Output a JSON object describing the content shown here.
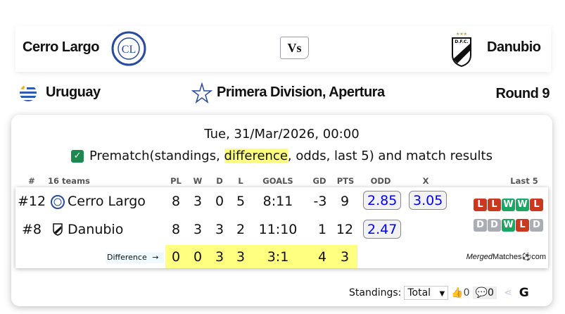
{
  "match": {
    "home": "Cerro Largo",
    "away": "Danubio",
    "vs": "Vs",
    "country": "Uruguay",
    "league": "Primera Division, Apertura",
    "round": "Round 9"
  },
  "datetime": "Tue, 31/Mar/2026, 00:00",
  "prematch": {
    "checked": true,
    "pre": "Prematch(standings, ",
    "highlight": "difference",
    "post": ", odds, last 5) and match results"
  },
  "table": {
    "headers": {
      "rank": "#",
      "teams": "16 teams",
      "pl": "PL",
      "w": "W",
      "d": "D",
      "l": "L",
      "goals": "GOALS",
      "gd": "GD",
      "pts": "PTS",
      "odd": "ODD",
      "x": "X",
      "last5": "Last 5"
    },
    "rows": [
      {
        "rank": "#12",
        "team": "Cerro Largo",
        "pl": "8",
        "w": "3",
        "d": "0",
        "l": "5",
        "goals": "8:11",
        "gd": "-3",
        "pts": "9",
        "odd": "2.85",
        "x": "3.05",
        "last5": [
          "L",
          "L",
          "W",
          "W",
          "L"
        ]
      },
      {
        "rank": "#8",
        "team": "Danubio",
        "pl": "8",
        "w": "3",
        "d": "3",
        "l": "2",
        "goals": "11:10",
        "gd": "1",
        "pts": "12",
        "odd": "2.47",
        "last5": [
          "D",
          "D",
          "W",
          "L",
          "D"
        ]
      }
    ],
    "difference": {
      "label": "Difference",
      "arrow": "→",
      "pl": "0",
      "w": "0",
      "d": "3",
      "l": "3",
      "goals": "3:1",
      "gd": "4",
      "pts": "3"
    }
  },
  "brand": {
    "italic": "Merged",
    "rest": "Matches",
    "tld": "com"
  },
  "footer": {
    "standings_label": "Standings:",
    "standings_value": "Total",
    "likes": "0",
    "comments": "0",
    "g": "G"
  },
  "colors": {
    "win": "#1aa663",
    "loss": "#c9391e",
    "draw": "#aaadb4",
    "highlight": "#ffff80",
    "odd_text": "#0000ff"
  }
}
